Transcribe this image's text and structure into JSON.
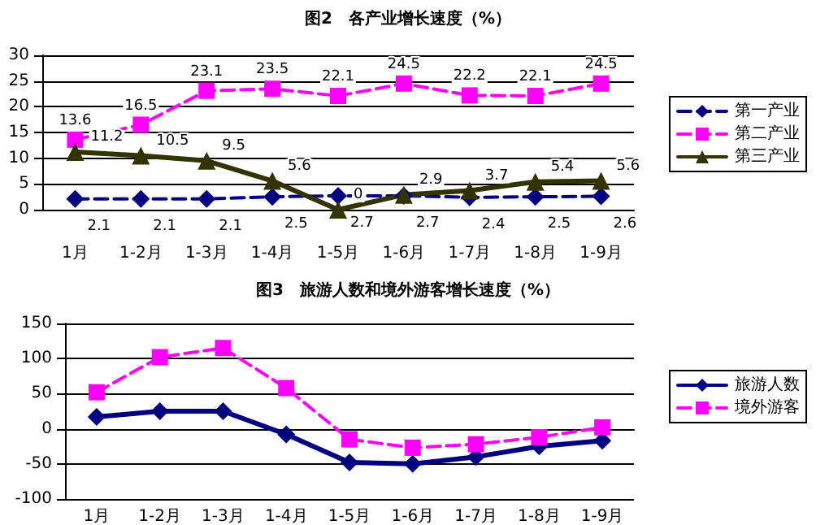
{
  "chart_data": [
    {
      "type": "line",
      "title": "图2　各产业增长速度（%）",
      "categories": [
        "1月",
        "1-2月",
        "1-3月",
        "1-4月",
        "1-5月",
        "1-6月",
        "1-7月",
        "1-8月",
        "1-9月"
      ],
      "series": [
        {
          "name": "第一产业",
          "color": "#000080",
          "marker": "diamond",
          "line_style": "dashed",
          "values": [
            2.1,
            2.1,
            2.1,
            2.5,
            2.7,
            2.7,
            2.4,
            2.5,
            2.6
          ]
        },
        {
          "name": "第二产业",
          "color": "#ff00ff",
          "marker": "square",
          "line_style": "dashed",
          "values": [
            13.6,
            16.5,
            23.1,
            23.5,
            22.1,
            24.5,
            22.2,
            22.1,
            24.5
          ]
        },
        {
          "name": "第三产业",
          "color": "#333300",
          "marker": "triangle",
          "line_style": "solid",
          "values": [
            11.2,
            10.5,
            9.5,
            5.6,
            0,
            2.9,
            3.7,
            5.4,
            5.6
          ]
        }
      ],
      "ylim": [
        0,
        30
      ],
      "yticks": [
        0,
        5,
        10,
        15,
        20,
        25,
        30
      ],
      "grid": "y",
      "legend": "right",
      "data_labels": true
    },
    {
      "type": "line",
      "title": "图3　旅游人数和境外游客增长速度（%）",
      "categories": [
        "1月",
        "1-2月",
        "1-3月",
        "1-4月",
        "1-5月",
        "1-6月",
        "1-7月",
        "1-8月",
        "1-9月"
      ],
      "series": [
        {
          "name": "旅游人数",
          "color": "#000080",
          "marker": "diamond",
          "line_style": "solid",
          "values": [
            17,
            25,
            25,
            -8,
            -48,
            -50,
            -40,
            -25,
            -17
          ]
        },
        {
          "name": "境外游客",
          "color": "#ff00ff",
          "marker": "square",
          "line_style": "dashed",
          "values": [
            52,
            102,
            115,
            58,
            -15,
            -27,
            -22,
            -12,
            2
          ]
        }
      ],
      "ylim": [
        -100,
        150
      ],
      "yticks": [
        -100,
        -50,
        0,
        50,
        100,
        150
      ],
      "grid": "y",
      "legend": "right"
    }
  ]
}
